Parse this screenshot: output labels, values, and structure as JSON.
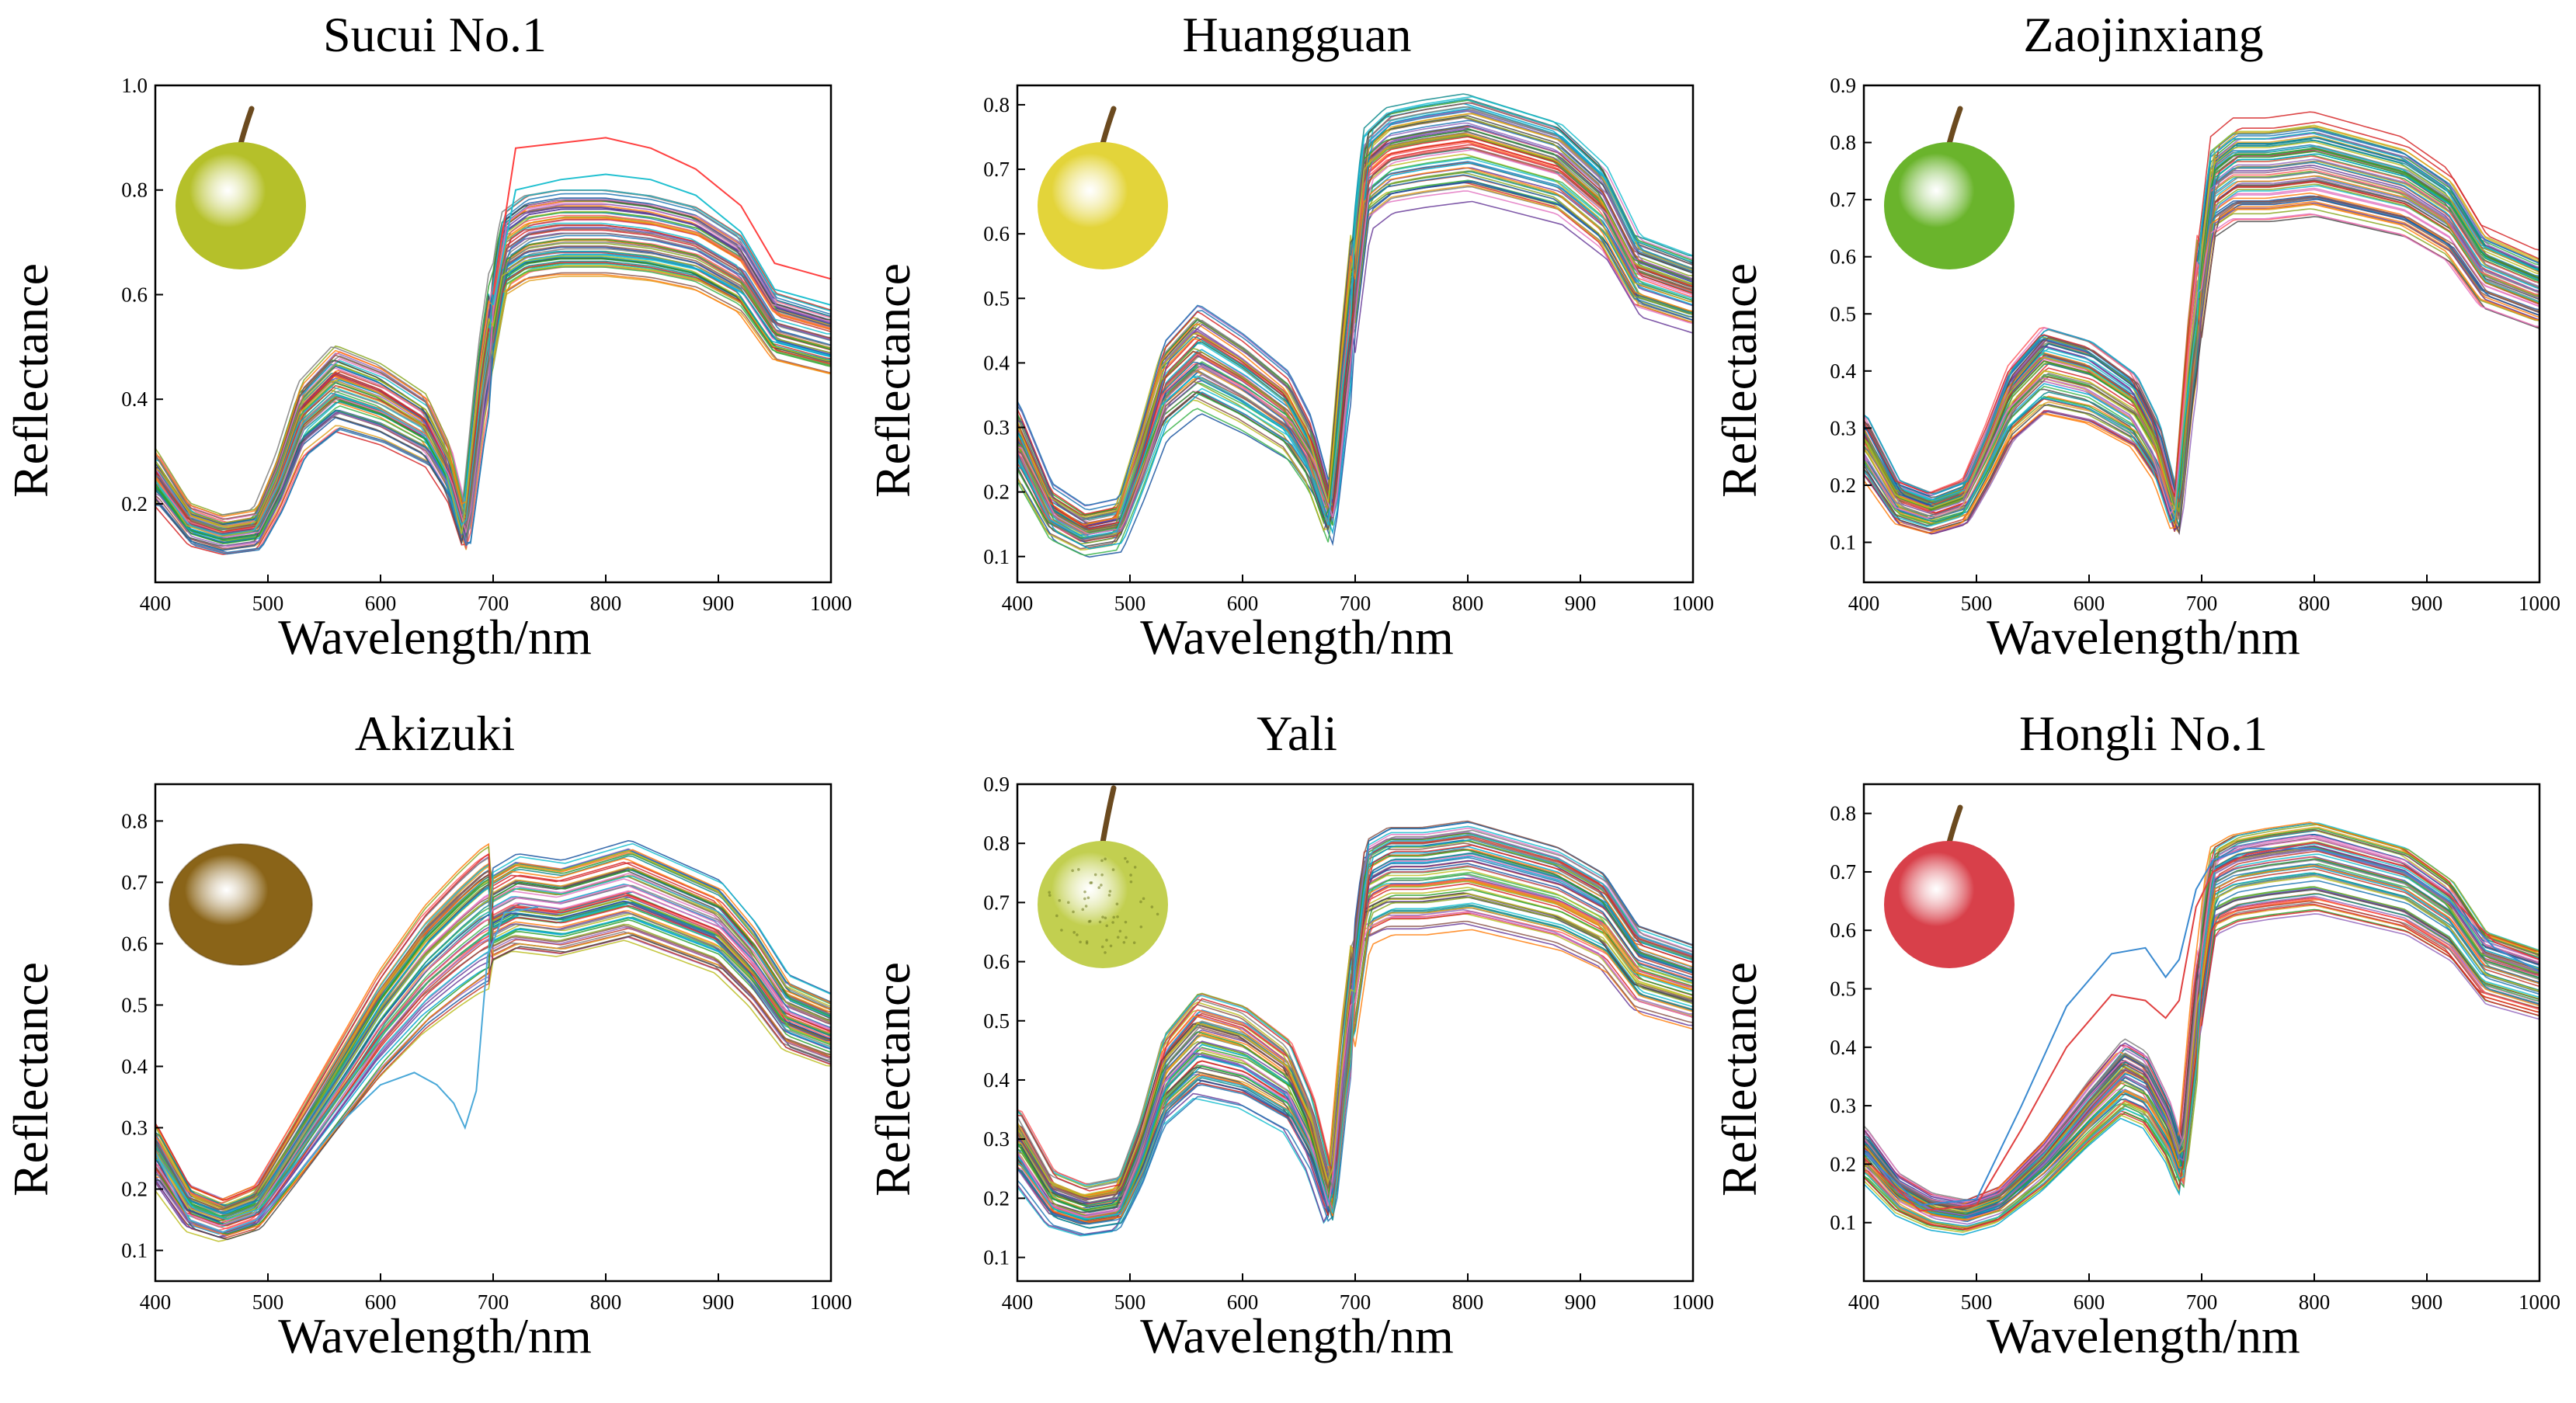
{
  "chart_data": [
    {
      "type": "line",
      "title": "Sucui No.1",
      "xlabel": "Wavelength/nm",
      "ylabel": "Reflectance",
      "xlim": [
        400,
        1000
      ],
      "ylim": [
        0.05,
        1.0
      ],
      "xticks": [
        400,
        500,
        600,
        700,
        800,
        900,
        1000
      ],
      "yticks": [
        0.2,
        0.4,
        0.6,
        0.8,
        1.0
      ],
      "ytick_labels": [
        "0.2",
        "0.4",
        "0.6",
        "0.8",
        "1.0"
      ],
      "fruit_icon": "green-pear-icon",
      "fruit_color": "#b5c02a",
      "curve_count": 70,
      "mean_spectrum": {
        "x": [
          400,
          430,
          460,
          490,
          510,
          530,
          560,
          600,
          640,
          660,
          675,
          690,
          710,
          730,
          760,
          800,
          840,
          880,
          920,
          950,
          1000
        ],
        "y": [
          0.25,
          0.16,
          0.14,
          0.15,
          0.24,
          0.36,
          0.42,
          0.39,
          0.34,
          0.26,
          0.14,
          0.42,
          0.68,
          0.71,
          0.72,
          0.72,
          0.71,
          0.69,
          0.64,
          0.54,
          0.51
        ]
      },
      "outlier_series": [
        {
          "x": [
            700,
            720,
            760,
            800,
            840,
            880,
            920,
            950,
            1000
          ],
          "y": [
            0.6,
            0.88,
            0.89,
            0.9,
            0.88,
            0.84,
            0.77,
            0.66,
            0.63
          ],
          "color": "#ff4040"
        },
        {
          "x": [
            700,
            720,
            760,
            800,
            840,
            880,
            920,
            950,
            1000
          ],
          "y": [
            0.58,
            0.8,
            0.82,
            0.83,
            0.82,
            0.79,
            0.72,
            0.61,
            0.58
          ],
          "color": "#20c0d0"
        }
      ]
    },
    {
      "type": "line",
      "title": "Huangguan",
      "xlabel": "Wavelength/nm",
      "ylabel": "Reflectance",
      "xlim": [
        400,
        1000
      ],
      "ylim": [
        0.06,
        0.83
      ],
      "xticks": [
        400,
        500,
        600,
        700,
        800,
        900,
        1000
      ],
      "yticks": [
        0.1,
        0.2,
        0.3,
        0.4,
        0.5,
        0.6,
        0.7,
        0.8
      ],
      "ytick_labels": [
        "0.1",
        "0.2",
        "0.3",
        "0.4",
        "0.5",
        "0.6",
        "0.7",
        "0.8"
      ],
      "fruit_icon": "yellow-pear-icon",
      "fruit_color": "#e3d43a",
      "curve_count": 70,
      "mean_spectrum": {
        "x": [
          400,
          430,
          460,
          490,
          510,
          530,
          560,
          600,
          640,
          660,
          678,
          690,
          710,
          730,
          760,
          800,
          840,
          880,
          920,
          950,
          1000
        ],
        "y": [
          0.28,
          0.17,
          0.14,
          0.15,
          0.25,
          0.36,
          0.41,
          0.37,
          0.32,
          0.26,
          0.16,
          0.38,
          0.69,
          0.72,
          0.73,
          0.74,
          0.72,
          0.7,
          0.64,
          0.54,
          0.51
        ]
      },
      "outlier_series": []
    },
    {
      "type": "line",
      "title": "Zaojinxiang",
      "xlabel": "Wavelength/nm",
      "ylabel": "Reflectance",
      "xlim": [
        400,
        1000
      ],
      "ylim": [
        0.03,
        0.9
      ],
      "xticks": [
        400,
        500,
        600,
        700,
        800,
        900,
        1000
      ],
      "yticks": [
        0.1,
        0.2,
        0.3,
        0.4,
        0.5,
        0.6,
        0.7,
        0.8,
        0.9
      ],
      "ytick_labels": [
        "0.1",
        "0.2",
        "0.3",
        "0.4",
        "0.5",
        "0.6",
        "0.7",
        "0.8",
        "0.9"
      ],
      "fruit_icon": "green-pear-icon",
      "fruit_color": "#6ab42c",
      "curve_count": 70,
      "mean_spectrum": {
        "x": [
          400,
          430,
          460,
          490,
          510,
          530,
          560,
          600,
          640,
          660,
          678,
          690,
          710,
          730,
          760,
          800,
          840,
          880,
          920,
          950,
          1000
        ],
        "y": [
          0.27,
          0.17,
          0.15,
          0.17,
          0.25,
          0.34,
          0.4,
          0.38,
          0.33,
          0.26,
          0.14,
          0.4,
          0.72,
          0.75,
          0.75,
          0.76,
          0.74,
          0.72,
          0.67,
          0.58,
          0.54
        ]
      },
      "outlier_series": []
    },
    {
      "type": "line",
      "title": "Akizuki",
      "xlabel": "Wavelength/nm",
      "ylabel": "Reflectance",
      "xlim": [
        400,
        1000
      ],
      "ylim": [
        0.05,
        0.86
      ],
      "xticks": [
        400,
        500,
        600,
        700,
        800,
        900,
        1000
      ],
      "yticks": [
        0.1,
        0.2,
        0.3,
        0.4,
        0.5,
        0.6,
        0.7,
        0.8
      ],
      "ytick_labels": [
        "0.1",
        "0.2",
        "0.3",
        "0.4",
        "0.5",
        "0.6",
        "0.7",
        "0.8"
      ],
      "fruit_icon": "brown-pear-icon",
      "fruit_color": "#8a6418",
      "curve_count": 70,
      "mean_spectrum": {
        "x": [
          400,
          430,
          460,
          490,
          520,
          560,
          600,
          640,
          670,
          690,
          720,
          760,
          800,
          820,
          860,
          900,
          930,
          960,
          1000
        ],
        "y": [
          0.26,
          0.17,
          0.15,
          0.17,
          0.25,
          0.36,
          0.47,
          0.56,
          0.61,
          0.64,
          0.67,
          0.66,
          0.68,
          0.69,
          0.66,
          0.63,
          0.57,
          0.49,
          0.46
        ]
      },
      "outlier_series": [
        {
          "x": [
            400,
            430,
            460,
            490,
            520,
            560,
            600,
            630,
            650,
            665,
            675,
            685,
            695,
            710,
            740
          ],
          "y": [
            0.26,
            0.15,
            0.13,
            0.15,
            0.21,
            0.3,
            0.37,
            0.39,
            0.37,
            0.34,
            0.3,
            0.36,
            0.58,
            0.65,
            0.66
          ],
          "color": "#4aa8d8"
        }
      ]
    },
    {
      "type": "line",
      "title": "Yali",
      "xlabel": "Wavelength/nm",
      "ylabel": "Reflectance",
      "xlim": [
        400,
        1000
      ],
      "ylim": [
        0.06,
        0.9
      ],
      "xticks": [
        400,
        500,
        600,
        700,
        800,
        900,
        1000
      ],
      "yticks": [
        0.1,
        0.2,
        0.3,
        0.4,
        0.5,
        0.6,
        0.7,
        0.8,
        0.9
      ],
      "ytick_labels": [
        "0.1",
        "0.2",
        "0.3",
        "0.4",
        "0.5",
        "0.6",
        "0.7",
        "0.8",
        "0.9"
      ],
      "fruit_icon": "speckled-pear-icon",
      "fruit_color": "#c2cf50",
      "curve_count": 70,
      "mean_spectrum": {
        "x": [
          400,
          430,
          460,
          490,
          510,
          530,
          560,
          600,
          640,
          660,
          678,
          690,
          710,
          730,
          760,
          800,
          840,
          880,
          920,
          950,
          1000
        ],
        "y": [
          0.29,
          0.2,
          0.18,
          0.19,
          0.28,
          0.4,
          0.46,
          0.44,
          0.39,
          0.31,
          0.19,
          0.43,
          0.72,
          0.74,
          0.74,
          0.75,
          0.73,
          0.71,
          0.67,
          0.59,
          0.56
        ]
      },
      "outlier_series": []
    },
    {
      "type": "line",
      "title": "Hongli No.1",
      "xlabel": "Wavelength/nm",
      "ylabel": "Reflectance",
      "xlim": [
        400,
        1000
      ],
      "ylim": [
        0.0,
        0.85
      ],
      "xticks": [
        400,
        500,
        600,
        700,
        800,
        900,
        1000
      ],
      "yticks": [
        0.1,
        0.2,
        0.3,
        0.4,
        0.5,
        0.6,
        0.7,
        0.8
      ],
      "ytick_labels": [
        "0.1",
        "0.2",
        "0.3",
        "0.4",
        "0.5",
        "0.6",
        "0.7",
        "0.8"
      ],
      "fruit_icon": "red-pear-icon",
      "fruit_color": "#d8404a",
      "curve_count": 70,
      "mean_spectrum": {
        "x": [
          400,
          430,
          460,
          490,
          520,
          560,
          600,
          630,
          650,
          670,
          682,
          695,
          710,
          730,
          760,
          800,
          840,
          880,
          920,
          950,
          1000
        ],
        "y": [
          0.22,
          0.15,
          0.12,
          0.11,
          0.13,
          0.2,
          0.29,
          0.35,
          0.33,
          0.26,
          0.19,
          0.45,
          0.66,
          0.68,
          0.69,
          0.7,
          0.68,
          0.66,
          0.61,
          0.53,
          0.5
        ]
      },
      "outlier_series": [
        {
          "x": [
            400,
            450,
            500,
            540,
            580,
            620,
            650,
            668,
            680,
            695,
            710,
            740,
            800,
            840,
            880,
            920,
            960,
            1000
          ],
          "y": [
            0.22,
            0.13,
            0.14,
            0.3,
            0.47,
            0.56,
            0.57,
            0.52,
            0.55,
            0.67,
            0.72,
            0.74,
            0.74,
            0.72,
            0.7,
            0.65,
            0.57,
            0.53
          ],
          "color": "#3a8ad0"
        },
        {
          "x": [
            400,
            450,
            500,
            540,
            580,
            620,
            650,
            668,
            680,
            695,
            710,
            740,
            800,
            840,
            880,
            920,
            960,
            1000
          ],
          "y": [
            0.21,
            0.12,
            0.13,
            0.26,
            0.4,
            0.49,
            0.48,
            0.45,
            0.48,
            0.64,
            0.7,
            0.73,
            0.75,
            0.73,
            0.71,
            0.66,
            0.58,
            0.55
          ],
          "color": "#e04040"
        }
      ]
    }
  ]
}
